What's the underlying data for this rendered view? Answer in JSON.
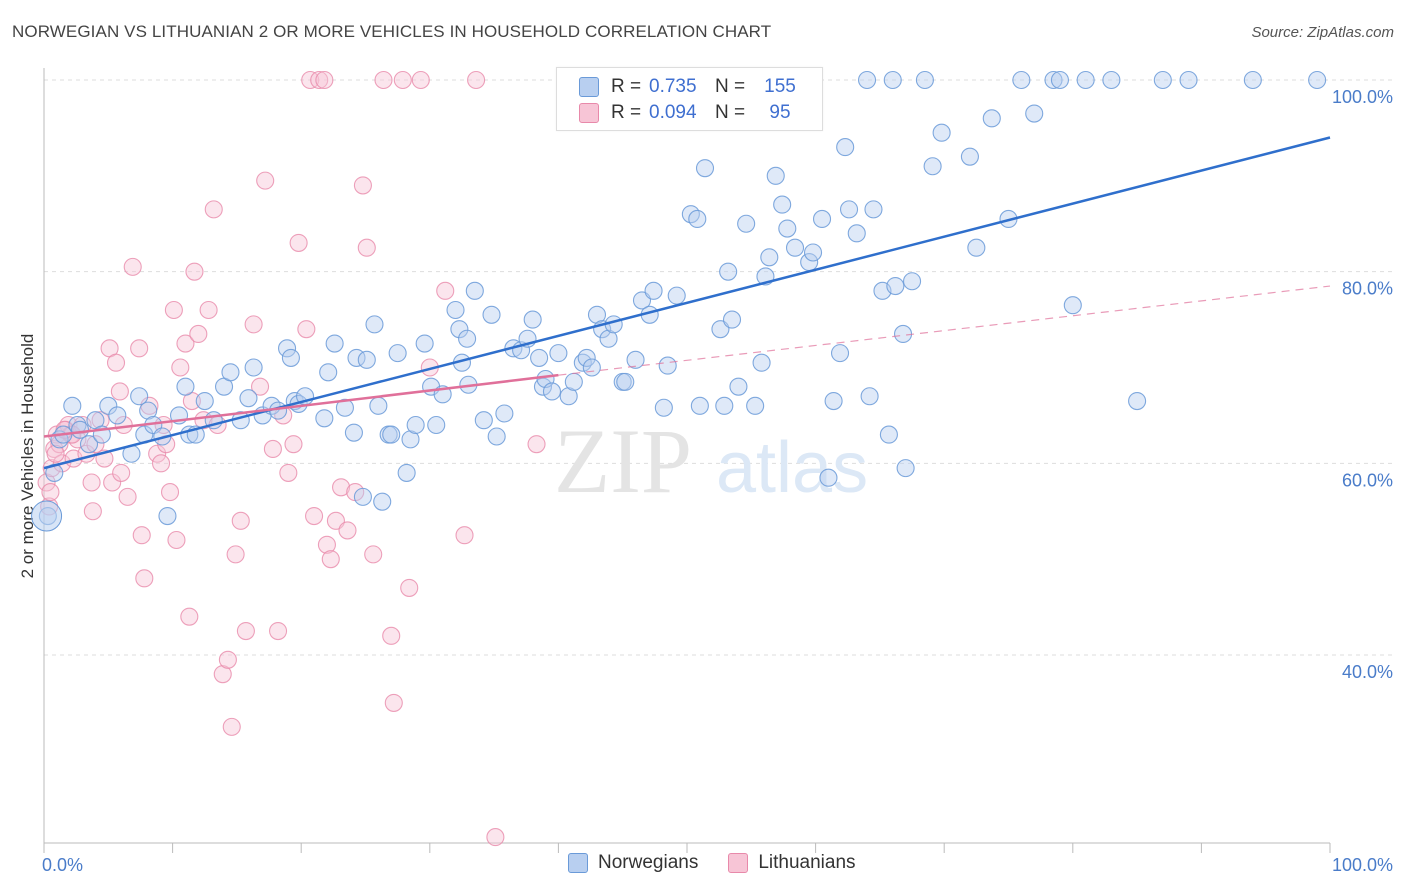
{
  "title": "NORWEGIAN VS LITHUANIAN 2 OR MORE VEHICLES IN HOUSEHOLD CORRELATION CHART",
  "source": "Source: ZipAtlas.com",
  "watermark": {
    "zip": "ZIP",
    "atlas": "atlas"
  },
  "colors": {
    "norwegian_fill": "#b8cff0",
    "norwegian_stroke": "#6a9ad8",
    "norwegian_line": "#2f6fcc",
    "lithuanian_fill": "#f7c5d6",
    "lithuanian_stroke": "#e889aa",
    "lithuanian_line": "#e0709a",
    "tick_label": "#4a7cc9"
  },
  "legend": {
    "rows": [
      {
        "r_label": "R =",
        "r_value": "0.735",
        "n_label": "N =",
        "n_value": "155"
      },
      {
        "r_label": "R =",
        "r_value": "0.094",
        "n_label": "N =",
        "n_value": "95"
      }
    ]
  },
  "bottom_legend": {
    "items": [
      "Norwegians",
      "Lithuanians"
    ]
  },
  "chart_data": {
    "type": "scatter",
    "title": "NORWEGIAN VS LITHUANIAN 2 OR MORE VEHICLES IN HOUSEHOLD CORRELATION CHART",
    "xlabel": "",
    "ylabel": "2 or more Vehicles in Household",
    "xlim": [
      0,
      100
    ],
    "ylim": [
      18,
      102
    ],
    "x_tick_labels": [
      "0.0%",
      "100.0%"
    ],
    "y_tick_labels": [
      "40.0%",
      "60.0%",
      "80.0%",
      "100.0%"
    ],
    "y_ticks": [
      40,
      60,
      80,
      100
    ],
    "grid": true,
    "legend_position": "top-center",
    "series": [
      {
        "name": "Norwegians",
        "r": 0.735,
        "n": 155,
        "trend": {
          "x": [
            0,
            100
          ],
          "y": [
            59.5,
            94.0
          ]
        },
        "points": [
          [
            0.3,
            54.5
          ],
          [
            0.8,
            59
          ],
          [
            1.2,
            62.5
          ],
          [
            1.5,
            63
          ],
          [
            2.2,
            66
          ],
          [
            2.6,
            64
          ],
          [
            2.8,
            63.5
          ],
          [
            3.5,
            62
          ],
          [
            4,
            64.5
          ],
          [
            4.5,
            63
          ],
          [
            5,
            66
          ],
          [
            5.7,
            65
          ],
          [
            6.8,
            61
          ],
          [
            7.4,
            67
          ],
          [
            7.8,
            63
          ],
          [
            8.1,
            65.5
          ],
          [
            8.5,
            64
          ],
          [
            9.2,
            62.8
          ],
          [
            9.6,
            54.5
          ],
          [
            10.5,
            65
          ],
          [
            11,
            68
          ],
          [
            11.3,
            63
          ],
          [
            11.8,
            63
          ],
          [
            12.5,
            66.5
          ],
          [
            13.2,
            64.5
          ],
          [
            14,
            68
          ],
          [
            14.5,
            69.5
          ],
          [
            15.3,
            64.5
          ],
          [
            15.9,
            66.8
          ],
          [
            16.3,
            70
          ],
          [
            17,
            65
          ],
          [
            17.7,
            66
          ],
          [
            18.2,
            65.5
          ],
          [
            18.9,
            72
          ],
          [
            19.2,
            71
          ],
          [
            19.5,
            66.5
          ],
          [
            19.8,
            66.2
          ],
          [
            20.3,
            67
          ],
          [
            21.8,
            64.7
          ],
          [
            22.1,
            69.5
          ],
          [
            22.6,
            72.5
          ],
          [
            23.4,
            65.8
          ],
          [
            24.1,
            63.2
          ],
          [
            24.3,
            71
          ],
          [
            24.8,
            56.5
          ],
          [
            25.1,
            70.8
          ],
          [
            25.7,
            74.5
          ],
          [
            26,
            66
          ],
          [
            26.3,
            56
          ],
          [
            26.8,
            63
          ],
          [
            27,
            63
          ],
          [
            27.5,
            71.5
          ],
          [
            28.2,
            59
          ],
          [
            28.5,
            62.5
          ],
          [
            28.9,
            64
          ],
          [
            29.6,
            72.5
          ],
          [
            30.1,
            68
          ],
          [
            30.5,
            64
          ],
          [
            31,
            67.2
          ],
          [
            32,
            76
          ],
          [
            32.3,
            74
          ],
          [
            32.5,
            70.5
          ],
          [
            32.9,
            73
          ],
          [
            33,
            68.2
          ],
          [
            33.5,
            78
          ],
          [
            34.2,
            64.5
          ],
          [
            34.8,
            75.5
          ],
          [
            35.2,
            62.8
          ],
          [
            35.8,
            65.2
          ],
          [
            36.5,
            72
          ],
          [
            37.1,
            71.8
          ],
          [
            37.6,
            73
          ],
          [
            38,
            75
          ],
          [
            38.5,
            71
          ],
          [
            38.8,
            68
          ],
          [
            39,
            68.8
          ],
          [
            39.5,
            67.5
          ],
          [
            40,
            71.5
          ],
          [
            40.8,
            67
          ],
          [
            41.2,
            68.5
          ],
          [
            41.9,
            70.5
          ],
          [
            42.2,
            71
          ],
          [
            42.6,
            70
          ],
          [
            43,
            75.5
          ],
          [
            43.4,
            74
          ],
          [
            43.9,
            73
          ],
          [
            44.3,
            74.5
          ],
          [
            45,
            68.5
          ],
          [
            45.2,
            68.5
          ],
          [
            46,
            70.8
          ],
          [
            46.5,
            77
          ],
          [
            47.1,
            75.5
          ],
          [
            47.4,
            78
          ],
          [
            48.2,
            65.8
          ],
          [
            48.5,
            70.2
          ],
          [
            49.2,
            77.5
          ],
          [
            50.3,
            86
          ],
          [
            50.8,
            85.5
          ],
          [
            51,
            66
          ],
          [
            51.4,
            90.8
          ],
          [
            52.6,
            74
          ],
          [
            52.9,
            66
          ],
          [
            53.2,
            80
          ],
          [
            53.5,
            75
          ],
          [
            54,
            68
          ],
          [
            54.6,
            85
          ],
          [
            55.3,
            66
          ],
          [
            55.8,
            70.5
          ],
          [
            56.1,
            79.5
          ],
          [
            56.4,
            81.5
          ],
          [
            56.9,
            90
          ],
          [
            57.4,
            87
          ],
          [
            57.8,
            84.5
          ],
          [
            58.4,
            82.5
          ],
          [
            59.5,
            81
          ],
          [
            59.8,
            82
          ],
          [
            60.5,
            85.5
          ],
          [
            61,
            58.5
          ],
          [
            61.4,
            66.5
          ],
          [
            61.9,
            71.5
          ],
          [
            62.3,
            93
          ],
          [
            62.6,
            86.5
          ],
          [
            63.2,
            84
          ],
          [
            64.2,
            67
          ],
          [
            64.5,
            86.5
          ],
          [
            65.2,
            78
          ],
          [
            65.7,
            63
          ],
          [
            66.2,
            78.5
          ],
          [
            66.8,
            73.5
          ],
          [
            67,
            59.5
          ],
          [
            67.5,
            79
          ],
          [
            69.1,
            91
          ],
          [
            69.8,
            94.5
          ],
          [
            72,
            92
          ],
          [
            72.5,
            82.5
          ],
          [
            73.7,
            96
          ],
          [
            75,
            85.5
          ],
          [
            77,
            96.5
          ],
          [
            80,
            76.5
          ],
          [
            83,
            100
          ],
          [
            85,
            66.5
          ],
          [
            99,
            100
          ],
          [
            94,
            100
          ],
          [
            87,
            100
          ],
          [
            89,
            100
          ],
          [
            78.5,
            100
          ],
          [
            76,
            100
          ],
          [
            79,
            100
          ],
          [
            81,
            100
          ],
          [
            68.5,
            100
          ],
          [
            66,
            100
          ],
          [
            64,
            100
          ]
        ]
      },
      {
        "name": "Lithuanians",
        "r": 0.094,
        "n": 95,
        "trend": {
          "x": [
            0,
            40
          ],
          "y": [
            62.8,
            69.2
          ]
        },
        "trend_extended": {
          "x": [
            40,
            100
          ],
          "y": [
            69.2,
            78.5
          ]
        },
        "points": [
          [
            0.2,
            58
          ],
          [
            0.4,
            55.5
          ],
          [
            0.5,
            57
          ],
          [
            0.6,
            59.5
          ],
          [
            0.8,
            61.5
          ],
          [
            1,
            63
          ],
          [
            1.2,
            62
          ],
          [
            1.4,
            60
          ],
          [
            1.7,
            63.5
          ],
          [
            1.9,
            64
          ],
          [
            2.1,
            63
          ],
          [
            2.3,
            60.5
          ],
          [
            2.6,
            62.5
          ],
          [
            3,
            64
          ],
          [
            3.3,
            61
          ],
          [
            3.7,
            58
          ],
          [
            4,
            62
          ],
          [
            4.4,
            64.5
          ],
          [
            4.7,
            60.5
          ],
          [
            5.1,
            72
          ],
          [
            5.6,
            70.5
          ],
          [
            5.9,
            67.5
          ],
          [
            6.2,
            64
          ],
          [
            6.5,
            56.5
          ],
          [
            6.9,
            80.5
          ],
          [
            7.4,
            72
          ],
          [
            7.6,
            52.5
          ],
          [
            7.8,
            48
          ],
          [
            8.2,
            66
          ],
          [
            8.8,
            61
          ],
          [
            9.1,
            60
          ],
          [
            9.5,
            62
          ],
          [
            9.8,
            57
          ],
          [
            10.1,
            76
          ],
          [
            10.3,
            52
          ],
          [
            10.6,
            70
          ],
          [
            11,
            72.5
          ],
          [
            11.3,
            44
          ],
          [
            11.7,
            80
          ],
          [
            12,
            73.5
          ],
          [
            12.4,
            64.5
          ],
          [
            12.8,
            76
          ],
          [
            13.2,
            86.5
          ],
          [
            13.5,
            64
          ],
          [
            13.9,
            38
          ],
          [
            14.3,
            39.5
          ],
          [
            14.6,
            32.5
          ],
          [
            14.9,
            50.5
          ],
          [
            15.3,
            54
          ],
          [
            15.7,
            42.5
          ],
          [
            16.3,
            74.5
          ],
          [
            16.8,
            68
          ],
          [
            17.2,
            89.5
          ],
          [
            17.8,
            61.5
          ],
          [
            18.2,
            42.5
          ],
          [
            18.6,
            65
          ],
          [
            19,
            59
          ],
          [
            19.4,
            62
          ],
          [
            19.8,
            83
          ],
          [
            20.4,
            74
          ],
          [
            20.7,
            100
          ],
          [
            21,
            54.5
          ],
          [
            21.4,
            100
          ],
          [
            21.8,
            100
          ],
          [
            22,
            51.5
          ],
          [
            22.3,
            50
          ],
          [
            22.7,
            54
          ],
          [
            23.1,
            57.5
          ],
          [
            23.6,
            53
          ],
          [
            24.2,
            57
          ],
          [
            24.8,
            89
          ],
          [
            25.1,
            82.5
          ],
          [
            25.6,
            50.5
          ],
          [
            26.4,
            100
          ],
          [
            27.2,
            35
          ],
          [
            27.9,
            100
          ],
          [
            28.4,
            47
          ],
          [
            29.3,
            100
          ],
          [
            30,
            70
          ],
          [
            31.2,
            78
          ],
          [
            32.7,
            52.5
          ],
          [
            33.6,
            100
          ],
          [
            35.1,
            21
          ],
          [
            38.3,
            62
          ],
          [
            27,
            42
          ],
          [
            9.3,
            64
          ],
          [
            11.5,
            66.5
          ],
          [
            2.2,
            63
          ],
          [
            3.8,
            55
          ],
          [
            5.3,
            58
          ],
          [
            6,
            59
          ],
          [
            0.9,
            61
          ],
          [
            1.6,
            63.5
          ]
        ]
      }
    ]
  }
}
